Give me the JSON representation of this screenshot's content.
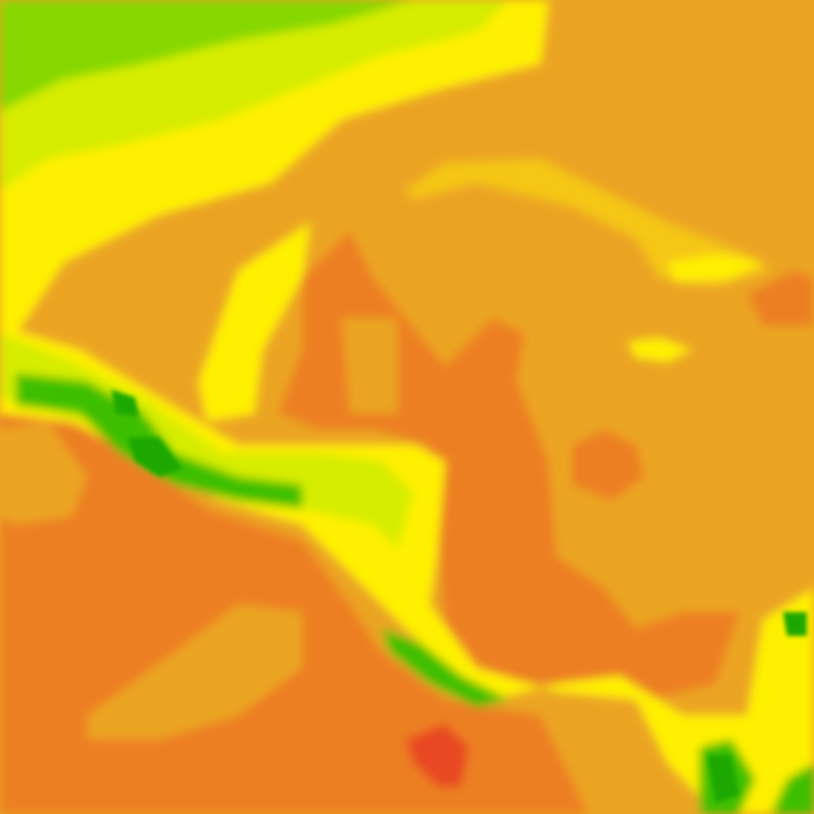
{
  "map": {
    "type": "raster-field-tile",
    "colors": {
      "light_green": "#86d800",
      "yellow_green": "#d6ec00",
      "yellow": "#fff000",
      "light_orange": "#f5c614",
      "orange": "#eba424",
      "dark_orange": "#ec7f22",
      "red_orange": "#e84a22",
      "green": "#3cbf00",
      "deep_green": "#1aa800"
    }
  }
}
